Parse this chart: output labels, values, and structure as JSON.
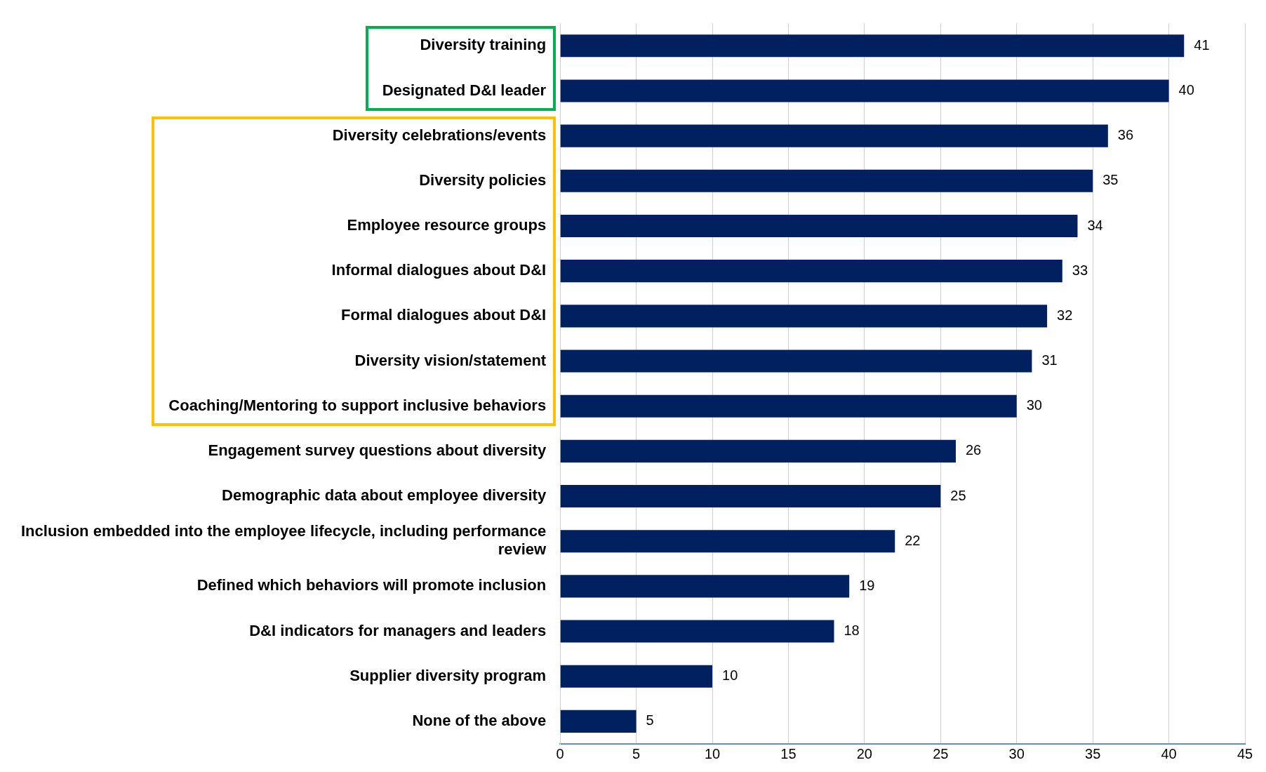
{
  "chart_data": {
    "type": "bar",
    "orientation": "horizontal",
    "categories": [
      "Diversity training",
      "Designated D&I leader",
      "Diversity celebrations/events",
      "Diversity policies",
      "Employee resource groups",
      "Informal dialogues about D&I",
      "Formal dialogues about D&I",
      "Diversity vision/statement",
      "Coaching/Mentoring to support inclusive behaviors",
      "Engagement survey questions about diversity",
      "Demographic data about employee diversity",
      "Inclusion embedded into the employee lifecycle, including performance review",
      "Defined which behaviors will promote inclusion",
      "D&I indicators for managers and leaders",
      "Supplier diversity program",
      "None of the above"
    ],
    "values": [
      41,
      40,
      36,
      35,
      34,
      33,
      32,
      31,
      30,
      26,
      25,
      22,
      19,
      18,
      10,
      5
    ],
    "color": "#002060",
    "xlim": [
      0,
      45
    ],
    "xticks": [
      0,
      5,
      10,
      15,
      20,
      25,
      30,
      35,
      40,
      45
    ],
    "grid": "x",
    "data_labels": true,
    "legend": false
  }
}
